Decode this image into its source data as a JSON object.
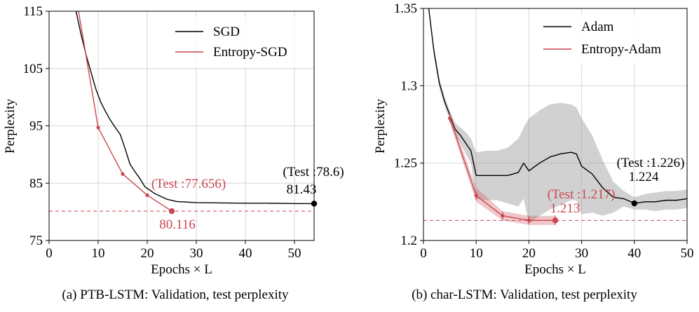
{
  "chart_data": [
    {
      "type": "line",
      "caption": "(a) PTB-LSTM: Validation, test perplexity",
      "xlabel": "Epochs × L",
      "ylabel": "Perplexity",
      "xlim": [
        0,
        54
      ],
      "ylim": [
        75,
        115
      ],
      "xticks": [
        0,
        10,
        20,
        30,
        40,
        50
      ],
      "xtick_labels": [
        "0",
        "10",
        "20",
        "30",
        "40",
        "50"
      ],
      "yticks": [
        75,
        85,
        95,
        105,
        115
      ],
      "ytick_labels": [
        "75",
        "85",
        "95",
        "105",
        "115"
      ],
      "grid": true,
      "legend_position": "top-right",
      "series": [
        {
          "name": "SGD",
          "color": "#000000",
          "x": [
            5.5,
            6.5,
            7.5,
            8.5,
            9.5,
            10.5,
            11.5,
            12.5,
            13.5,
            14.5,
            15.5,
            16.5,
            17.5,
            18.5,
            19.5,
            20.5,
            21.5,
            22.5,
            24,
            26,
            28,
            30,
            35,
            40,
            45,
            50,
            54
          ],
          "y": [
            115,
            111,
            107.5,
            104.5,
            101.5,
            99.2,
            97.5,
            96,
            94.7,
            93.5,
            91,
            88.3,
            87,
            85.8,
            84.4,
            83.8,
            83.2,
            82.8,
            82.2,
            81.8,
            81.7,
            81.6,
            81.55,
            81.5,
            81.5,
            81.45,
            81.43
          ]
        },
        {
          "name": "Entropy-SGD",
          "color": "#c9474f",
          "x": [
            6,
            10,
            15,
            20,
            25
          ],
          "y": [
            115,
            94.7,
            86.6,
            82.9,
            80.116
          ],
          "marker_x": [
            10,
            15,
            20
          ],
          "marker_y": [
            94.7,
            86.6,
            82.9
          ]
        }
      ],
      "reference_line": {
        "y": 80.116,
        "color": "#c9474f",
        "style": "dashed"
      },
      "endpoints": [
        {
          "x": 54,
          "y": 81.43,
          "color": "#000000"
        },
        {
          "x": 25,
          "y": 80.116,
          "color": "#c9474f"
        }
      ],
      "annotations": [
        {
          "text": "(Test :78.6)",
          "color": "#000000"
        },
        {
          "text": "81.43",
          "color": "#000000"
        },
        {
          "text": "(Test :77.656)",
          "color": "#c9474f"
        },
        {
          "text": "80.116",
          "color": "#c9474f"
        }
      ]
    },
    {
      "type": "line",
      "caption": "(b) char-LSTM: Validation, test perplexity",
      "xlabel": "Epochs × L",
      "ylabel": "Perplexity",
      "xlim": [
        0,
        50
      ],
      "ylim": [
        1.2,
        1.35
      ],
      "xticks": [
        0,
        10,
        20,
        30,
        40,
        50
      ],
      "xtick_labels": [
        "0",
        "10",
        "20",
        "30",
        "40",
        "50"
      ],
      "yticks": [
        1.2,
        1.25,
        1.3,
        1.35
      ],
      "ytick_labels": [
        "1.2",
        "1.25",
        "1.3",
        "1.35"
      ],
      "grid": true,
      "legend_position": "top-right",
      "series": [
        {
          "name": "Adam",
          "color": "#000000",
          "x": [
            1,
            2,
            3,
            4,
            5,
            6,
            7,
            8,
            9,
            10,
            12,
            14,
            16,
            18,
            19,
            20,
            22,
            24,
            26,
            28,
            29,
            30,
            32,
            34,
            36,
            38,
            40,
            42,
            44,
            46,
            48,
            50
          ],
          "y": [
            1.35,
            1.322,
            1.302,
            1.29,
            1.281,
            1.272,
            1.268,
            1.263,
            1.258,
            1.242,
            1.242,
            1.242,
            1.242,
            1.244,
            1.25,
            1.245,
            1.25,
            1.254,
            1.256,
            1.257,
            1.256,
            1.248,
            1.243,
            1.234,
            1.228,
            1.227,
            1.224,
            1.225,
            1.225,
            1.226,
            1.226,
            1.227
          ],
          "band_upper": [
            1.35,
            1.325,
            1.305,
            1.293,
            1.284,
            1.276,
            1.273,
            1.27,
            1.266,
            1.257,
            1.258,
            1.258,
            1.26,
            1.266,
            1.273,
            1.279,
            1.284,
            1.288,
            1.289,
            1.288,
            1.286,
            1.279,
            1.268,
            1.252,
            1.238,
            1.232,
            1.228,
            1.23,
            1.231,
            1.232,
            1.232,
            1.233
          ],
          "band_lower": [
            1.35,
            1.319,
            1.299,
            1.287,
            1.278,
            1.268,
            1.263,
            1.256,
            1.25,
            1.227,
            1.226,
            1.226,
            1.224,
            1.222,
            1.227,
            1.211,
            1.216,
            1.22,
            1.223,
            1.226,
            1.226,
            1.217,
            1.218,
            1.216,
            1.218,
            1.222,
            1.22,
            1.22,
            1.219,
            1.22,
            1.22,
            1.221
          ]
        },
        {
          "name": "Entropy-Adam",
          "color": "#c9474f",
          "x": [
            5,
            10,
            15,
            20,
            25
          ],
          "y": [
            1.279,
            1.229,
            1.216,
            1.213,
            1.213
          ],
          "band_upper": [
            1.282,
            1.234,
            1.219,
            1.216,
            1.216
          ],
          "band_lower": [
            1.276,
            1.225,
            1.213,
            1.21,
            1.21
          ],
          "marker_x": [
            5,
            10,
            15,
            20
          ],
          "marker_y": [
            1.279,
            1.229,
            1.216,
            1.213
          ]
        }
      ],
      "reference_line": {
        "y": 1.213,
        "color": "#c9474f",
        "style": "dashed"
      },
      "endpoints": [
        {
          "x": 40,
          "y": 1.224,
          "color": "#000000"
        },
        {
          "x": 25,
          "y": 1.213,
          "color": "#c9474f"
        }
      ],
      "annotations": [
        {
          "text": "(Test :1.226)",
          "color": "#000000"
        },
        {
          "text": "1.224",
          "color": "#000000"
        },
        {
          "text": "(Test :1.217)",
          "color": "#c9474f"
        },
        {
          "text": "1.213",
          "color": "#c9474f"
        }
      ]
    }
  ]
}
